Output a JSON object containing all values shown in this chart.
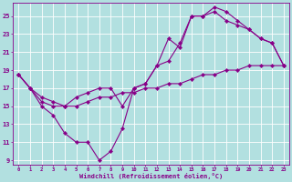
{
  "xlabel": "Windchill (Refroidissement éolien,°C)",
  "bg_color": "#b2e0e0",
  "line_color": "#880088",
  "grid_color": "#ffffff",
  "xmin": -0.5,
  "xmax": 23.5,
  "ymin": 8.5,
  "ymax": 26.5,
  "yticks": [
    9,
    11,
    13,
    15,
    17,
    19,
    21,
    23,
    25
  ],
  "xticks": [
    0,
    1,
    2,
    3,
    4,
    5,
    6,
    7,
    8,
    9,
    10,
    11,
    12,
    13,
    14,
    15,
    16,
    17,
    18,
    19,
    20,
    21,
    22,
    23
  ],
  "series": [
    {
      "x": [
        0,
        1,
        2,
        3,
        4,
        5,
        6,
        7,
        8,
        9,
        10,
        11,
        12,
        13,
        14,
        15,
        16,
        17,
        18,
        19,
        20,
        21,
        22,
        23
      ],
      "y": [
        18.5,
        17.0,
        15.0,
        14.0,
        12.0,
        11.0,
        11.0,
        9.0,
        10.0,
        12.5,
        17.0,
        17.5,
        19.5,
        22.5,
        21.5,
        25.0,
        25.0,
        26.0,
        25.5,
        24.5,
        23.5,
        22.5,
        22.0,
        19.5
      ]
    },
    {
      "x": [
        0,
        1,
        2,
        3,
        4,
        5,
        6,
        7,
        8,
        9,
        10,
        11,
        12,
        13,
        14,
        15,
        16,
        17,
        18,
        19,
        20,
        21,
        22,
        23
      ],
      "y": [
        18.5,
        17.0,
        15.5,
        15.0,
        15.0,
        16.0,
        16.5,
        17.0,
        17.0,
        15.0,
        17.0,
        17.5,
        19.5,
        20.0,
        22.0,
        25.0,
        25.0,
        25.5,
        24.5,
        24.0,
        23.5,
        22.5,
        22.0,
        19.5
      ]
    },
    {
      "x": [
        0,
        1,
        2,
        3,
        4,
        5,
        6,
        7,
        8,
        9,
        10,
        11,
        12,
        13,
        14,
        15,
        16,
        17,
        18,
        19,
        20,
        21,
        22,
        23
      ],
      "y": [
        18.5,
        17.0,
        16.0,
        15.5,
        15.0,
        15.0,
        15.5,
        16.0,
        16.0,
        16.5,
        16.5,
        17.0,
        17.0,
        17.5,
        17.5,
        18.0,
        18.5,
        18.5,
        19.0,
        19.0,
        19.5,
        19.5,
        19.5,
        19.5
      ]
    }
  ]
}
